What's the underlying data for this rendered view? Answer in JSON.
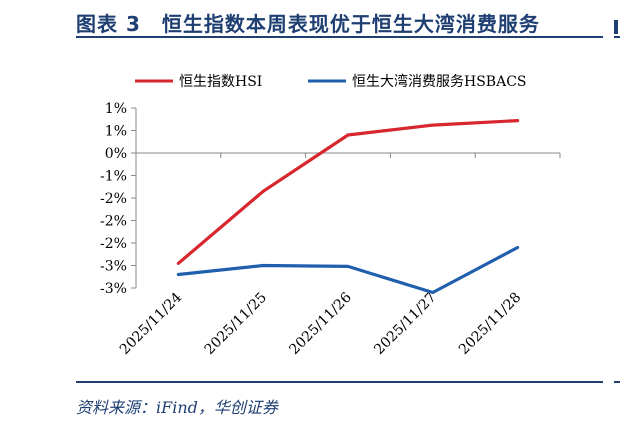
{
  "figure": {
    "title": "图表 3　恒生指数本周表现优于恒生大湾消费服务",
    "source": "资料来源：iFind，华创证券"
  },
  "chart_data": {
    "type": "line",
    "categories": [
      "2025/11/24",
      "2025/11/25",
      "2025/11/26",
      "2025/11/27",
      "2025/11/28"
    ],
    "y_tick_labels": [
      "1%",
      "1%",
      "0%",
      "-1%",
      "-2%",
      "-2%",
      "-2%",
      "-3%",
      "-3%"
    ],
    "ylim": [
      -3.0,
      1.0
    ],
    "unit": "%",
    "grid": false,
    "legend_position": "top",
    "series": [
      {
        "name": "恒生指数HSI",
        "color": "#d7262e",
        "values": [
          -2.45,
          -0.85,
          0.4,
          0.62,
          0.72
        ]
      },
      {
        "name": "恒生大湾消费服务HSBACS",
        "color": "#1f5fad",
        "values": [
          -2.7,
          -2.5,
          -2.52,
          -3.1,
          -2.1
        ]
      }
    ]
  }
}
